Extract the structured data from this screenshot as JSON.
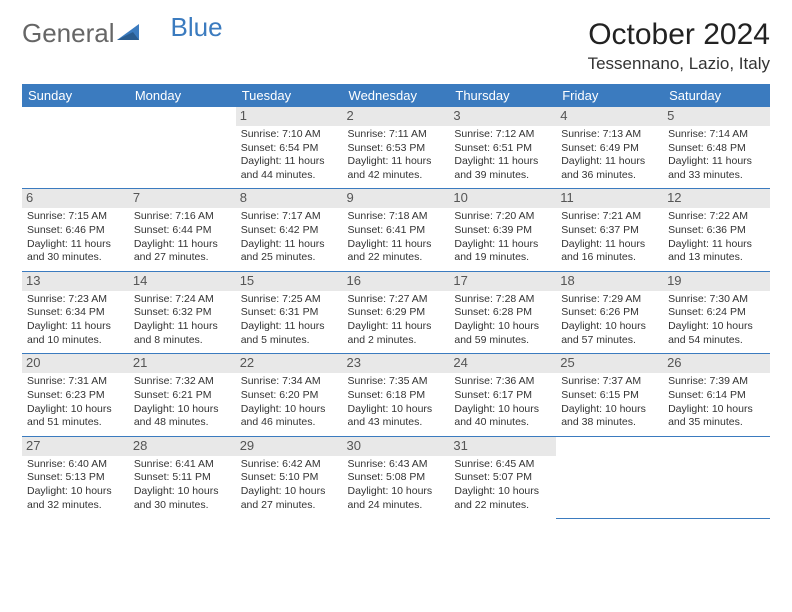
{
  "logo": {
    "text1": "General",
    "text2": "Blue"
  },
  "title": "October 2024",
  "location": "Tessennano, Lazio, Italy",
  "day_headers": [
    "Sunday",
    "Monday",
    "Tuesday",
    "Wednesday",
    "Thursday",
    "Friday",
    "Saturday"
  ],
  "colors": {
    "header_bg": "#3b7bbf",
    "header_fg": "#ffffff",
    "daynum_bg": "#e8e8e8",
    "border": "#3b7bbf"
  },
  "weeks": [
    [
      null,
      null,
      {
        "n": "1",
        "sr": "Sunrise: 7:10 AM",
        "ss": "Sunset: 6:54 PM",
        "dl": "Daylight: 11 hours and 44 minutes."
      },
      {
        "n": "2",
        "sr": "Sunrise: 7:11 AM",
        "ss": "Sunset: 6:53 PM",
        "dl": "Daylight: 11 hours and 42 minutes."
      },
      {
        "n": "3",
        "sr": "Sunrise: 7:12 AM",
        "ss": "Sunset: 6:51 PM",
        "dl": "Daylight: 11 hours and 39 minutes."
      },
      {
        "n": "4",
        "sr": "Sunrise: 7:13 AM",
        "ss": "Sunset: 6:49 PM",
        "dl": "Daylight: 11 hours and 36 minutes."
      },
      {
        "n": "5",
        "sr": "Sunrise: 7:14 AM",
        "ss": "Sunset: 6:48 PM",
        "dl": "Daylight: 11 hours and 33 minutes."
      }
    ],
    [
      {
        "n": "6",
        "sr": "Sunrise: 7:15 AM",
        "ss": "Sunset: 6:46 PM",
        "dl": "Daylight: 11 hours and 30 minutes."
      },
      {
        "n": "7",
        "sr": "Sunrise: 7:16 AM",
        "ss": "Sunset: 6:44 PM",
        "dl": "Daylight: 11 hours and 27 minutes."
      },
      {
        "n": "8",
        "sr": "Sunrise: 7:17 AM",
        "ss": "Sunset: 6:42 PM",
        "dl": "Daylight: 11 hours and 25 minutes."
      },
      {
        "n": "9",
        "sr": "Sunrise: 7:18 AM",
        "ss": "Sunset: 6:41 PM",
        "dl": "Daylight: 11 hours and 22 minutes."
      },
      {
        "n": "10",
        "sr": "Sunrise: 7:20 AM",
        "ss": "Sunset: 6:39 PM",
        "dl": "Daylight: 11 hours and 19 minutes."
      },
      {
        "n": "11",
        "sr": "Sunrise: 7:21 AM",
        "ss": "Sunset: 6:37 PM",
        "dl": "Daylight: 11 hours and 16 minutes."
      },
      {
        "n": "12",
        "sr": "Sunrise: 7:22 AM",
        "ss": "Sunset: 6:36 PM",
        "dl": "Daylight: 11 hours and 13 minutes."
      }
    ],
    [
      {
        "n": "13",
        "sr": "Sunrise: 7:23 AM",
        "ss": "Sunset: 6:34 PM",
        "dl": "Daylight: 11 hours and 10 minutes."
      },
      {
        "n": "14",
        "sr": "Sunrise: 7:24 AM",
        "ss": "Sunset: 6:32 PM",
        "dl": "Daylight: 11 hours and 8 minutes."
      },
      {
        "n": "15",
        "sr": "Sunrise: 7:25 AM",
        "ss": "Sunset: 6:31 PM",
        "dl": "Daylight: 11 hours and 5 minutes."
      },
      {
        "n": "16",
        "sr": "Sunrise: 7:27 AM",
        "ss": "Sunset: 6:29 PM",
        "dl": "Daylight: 11 hours and 2 minutes."
      },
      {
        "n": "17",
        "sr": "Sunrise: 7:28 AM",
        "ss": "Sunset: 6:28 PM",
        "dl": "Daylight: 10 hours and 59 minutes."
      },
      {
        "n": "18",
        "sr": "Sunrise: 7:29 AM",
        "ss": "Sunset: 6:26 PM",
        "dl": "Daylight: 10 hours and 57 minutes."
      },
      {
        "n": "19",
        "sr": "Sunrise: 7:30 AM",
        "ss": "Sunset: 6:24 PM",
        "dl": "Daylight: 10 hours and 54 minutes."
      }
    ],
    [
      {
        "n": "20",
        "sr": "Sunrise: 7:31 AM",
        "ss": "Sunset: 6:23 PM",
        "dl": "Daylight: 10 hours and 51 minutes."
      },
      {
        "n": "21",
        "sr": "Sunrise: 7:32 AM",
        "ss": "Sunset: 6:21 PM",
        "dl": "Daylight: 10 hours and 48 minutes."
      },
      {
        "n": "22",
        "sr": "Sunrise: 7:34 AM",
        "ss": "Sunset: 6:20 PM",
        "dl": "Daylight: 10 hours and 46 minutes."
      },
      {
        "n": "23",
        "sr": "Sunrise: 7:35 AM",
        "ss": "Sunset: 6:18 PM",
        "dl": "Daylight: 10 hours and 43 minutes."
      },
      {
        "n": "24",
        "sr": "Sunrise: 7:36 AM",
        "ss": "Sunset: 6:17 PM",
        "dl": "Daylight: 10 hours and 40 minutes."
      },
      {
        "n": "25",
        "sr": "Sunrise: 7:37 AM",
        "ss": "Sunset: 6:15 PM",
        "dl": "Daylight: 10 hours and 38 minutes."
      },
      {
        "n": "26",
        "sr": "Sunrise: 7:39 AM",
        "ss": "Sunset: 6:14 PM",
        "dl": "Daylight: 10 hours and 35 minutes."
      }
    ],
    [
      {
        "n": "27",
        "sr": "Sunrise: 6:40 AM",
        "ss": "Sunset: 5:13 PM",
        "dl": "Daylight: 10 hours and 32 minutes."
      },
      {
        "n": "28",
        "sr": "Sunrise: 6:41 AM",
        "ss": "Sunset: 5:11 PM",
        "dl": "Daylight: 10 hours and 30 minutes."
      },
      {
        "n": "29",
        "sr": "Sunrise: 6:42 AM",
        "ss": "Sunset: 5:10 PM",
        "dl": "Daylight: 10 hours and 27 minutes."
      },
      {
        "n": "30",
        "sr": "Sunrise: 6:43 AM",
        "ss": "Sunset: 5:08 PM",
        "dl": "Daylight: 10 hours and 24 minutes."
      },
      {
        "n": "31",
        "sr": "Sunrise: 6:45 AM",
        "ss": "Sunset: 5:07 PM",
        "dl": "Daylight: 10 hours and 22 minutes."
      },
      null,
      null
    ]
  ]
}
